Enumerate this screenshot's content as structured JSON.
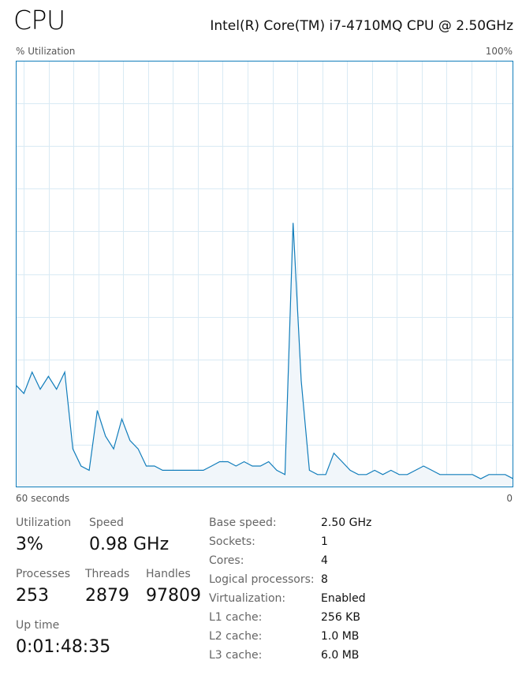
{
  "header": {
    "title": "CPU",
    "cpu_model": "Intel(R) Core(TM) i7-4710MQ CPU @ 2.50GHz"
  },
  "graph": {
    "y_label": "% Utilization",
    "y_max_label": "100%",
    "x_left_label": "60 seconds",
    "x_right_label": "0",
    "line_color": "#117dbb",
    "fill_color": "#f1f6fa",
    "grid_color": "#d9eaf4"
  },
  "chart_data": {
    "type": "area",
    "xlabel": "",
    "ylabel": "% Utilization",
    "ylim": [
      0,
      100
    ],
    "xlim": [
      60,
      0
    ],
    "y_values": [
      24,
      22,
      27,
      23,
      26,
      23,
      27,
      9,
      5,
      4,
      18,
      12,
      9,
      16,
      11,
      9,
      5,
      5,
      4,
      4,
      4,
      4,
      4,
      4,
      5,
      6,
      6,
      5,
      6,
      5,
      5,
      6,
      4,
      3,
      62,
      25,
      4,
      3,
      3,
      8,
      6,
      4,
      3,
      3,
      4,
      3,
      4,
      3,
      3,
      4,
      5,
      4,
      3,
      3,
      3,
      3,
      3,
      2,
      3,
      3,
      3,
      2
    ]
  },
  "stats": {
    "utilization": {
      "label": "Utilization",
      "value": "3%"
    },
    "speed": {
      "label": "Speed",
      "value": "0.98 GHz"
    },
    "processes": {
      "label": "Processes",
      "value": "253"
    },
    "threads": {
      "label": "Threads",
      "value": "2879"
    },
    "handles": {
      "label": "Handles",
      "value": "97809"
    },
    "uptime": {
      "label": "Up time",
      "value": "0:01:48:35"
    }
  },
  "details": [
    {
      "label": "Base speed:",
      "value": "2.50 GHz"
    },
    {
      "label": "Sockets:",
      "value": "1"
    },
    {
      "label": "Cores:",
      "value": "4"
    },
    {
      "label": "Logical processors:",
      "value": "8"
    },
    {
      "label": "Virtualization:",
      "value": "Enabled"
    },
    {
      "label": "L1 cache:",
      "value": "256 KB"
    },
    {
      "label": "L2 cache:",
      "value": "1.0 MB"
    },
    {
      "label": "L3 cache:",
      "value": "6.0 MB"
    }
  ]
}
